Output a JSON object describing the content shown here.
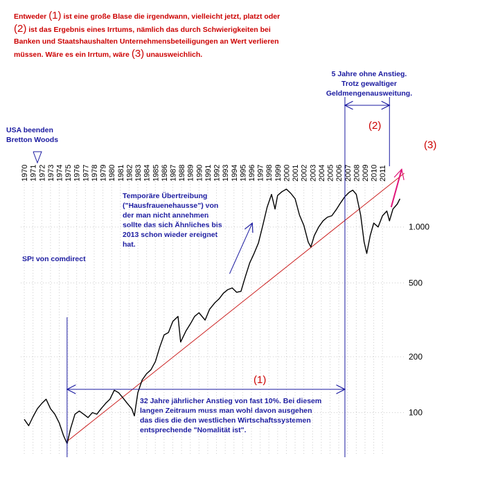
{
  "notes": {
    "top_line1_pre": "Entweder",
    "top_marker1": "(1)",
    "top_line1_post": "ist eine große Blase die irgendwann, vielleicht jetzt, platzt oder",
    "top_marker2": "(2)",
    "top_line2_post": "ist das Ergebnis eines Irrtums, nämlich das durch Schwierigkeiten bei",
    "top_line3": "Banken und Staatshaushalten Unternehmensbeteiligungen an Wert verlieren",
    "top_line4_pre": "müssen. Wäre es ein Irrtum, wäre",
    "top_marker3": "(3)",
    "top_line4_post": "unausweichlich.",
    "five_years_l1": "5 Jahre ohne Anstieg.",
    "five_years_l2": "Trotz gewaltiger",
    "five_years_l3": "Geldmengenausweitung.",
    "usa_l1": "USA beenden",
    "usa_l2": "Bretton Woods",
    "temp_l1": "Temporäre Übertreibung",
    "temp_l2": "(\"Hausfrauenehausse\") von",
    "temp_l3": "der man nicht annehmen",
    "temp_l4": "sollte das sich  Ähnliches bis",
    "temp_l5": "2013 schon wieder ereignet",
    "temp_l6": "hat.",
    "spi": "SPI von comdirect",
    "label_1": "(1)",
    "label_2": "(2)",
    "label_3": "(3)",
    "bottom_l1": "32 Jahre jährlicher Anstieg von fast 10%. Bei diesem",
    "bottom_l2": "langen Zeitraum muss man wohl davon ausgehen",
    "bottom_l3": "das dies die den westlichen Wirtschaftssystemen",
    "bottom_l4": "entsprechende \"Nomalität ist\"."
  },
  "colors": {
    "note_red": "#cc0000",
    "note_blue": "#1a1aa0",
    "trend_red": "#cc2222",
    "arrow_magenta": "#e0167a",
    "price_line": "#000000",
    "grid": "#cccccc"
  },
  "chart_data": {
    "type": "line",
    "title": "",
    "xlabel": "",
    "ylabel": "",
    "y_scale": "log",
    "ylim": [
      60,
      2200
    ],
    "xlim": [
      1969.6,
      2013.6
    ],
    "x_ticks": [
      "1970",
      "1971",
      "1972",
      "1973",
      "1974",
      "1975",
      "1976",
      "1977",
      "1978",
      "1979",
      "1980",
      "1981",
      "1982",
      "1983",
      "1984",
      "1985",
      "1986",
      "1987",
      "1988",
      "1989",
      "1990",
      "1991",
      "1992",
      "1993",
      "1994",
      "1995",
      "1996",
      "1997",
      "1998",
      "1999",
      "2000",
      "2001",
      "2002",
      "2003",
      "2004",
      "2005",
      "2006",
      "2007",
      "2008",
      "2009",
      "2010",
      "2011"
    ],
    "y_ticks": [
      {
        "value": 100,
        "label": "100"
      },
      {
        "value": 200,
        "label": "200"
      },
      {
        "value": 500,
        "label": "500"
      },
      {
        "value": 1000,
        "label": "1.000"
      }
    ],
    "grid": true,
    "series": [
      {
        "values_x": [
          1970.0,
          1970.5,
          1971.0,
          1971.5,
          1972.0,
          1972.5,
          1973.0,
          1973.5,
          1974.0,
          1974.5,
          1974.9,
          1975.3,
          1975.8,
          1976.3,
          1976.8,
          1977.3,
          1977.8,
          1978.3,
          1978.8,
          1979.3,
          1979.8,
          1980.3,
          1980.8,
          1981.3,
          1981.8,
          1982.3,
          1982.6,
          1983.0,
          1983.5,
          1984.0,
          1984.5,
          1985.0,
          1985.5,
          1986.0,
          1986.5,
          1987.0,
          1987.6,
          1987.9,
          1988.5,
          1989.0,
          1989.5,
          1990.0,
          1990.7,
          1991.2,
          1991.8,
          1992.3,
          1992.8,
          1993.3,
          1993.8,
          1994.3,
          1994.8,
          1995.3,
          1995.8,
          1996.3,
          1996.8,
          1997.3,
          1997.8,
          1998.3,
          1998.7,
          1999.0,
          1999.5,
          2000.0,
          2000.5,
          2001.0,
          2001.5,
          2002.0,
          2002.5,
          2002.8,
          2003.2,
          2003.7,
          2004.2,
          2004.7,
          2005.2,
          2005.7,
          2006.2,
          2006.7,
          2007.2,
          2007.6,
          2008.0,
          2008.5,
          2008.9,
          2009.2,
          2009.6,
          2010.0,
          2010.5,
          2011.0,
          2011.5,
          2011.8,
          2012.2,
          2012.7,
          2013.0
        ],
        "values_y": [
          92,
          85,
          95,
          105,
          112,
          118,
          105,
          98,
          88,
          75,
          68,
          82,
          98,
          102,
          98,
          94,
          100,
          98,
          105,
          112,
          118,
          132,
          128,
          120,
          112,
          105,
          96,
          128,
          150,
          162,
          170,
          188,
          225,
          262,
          270,
          310,
          330,
          240,
          275,
          300,
          330,
          345,
          315,
          360,
          390,
          410,
          440,
          460,
          470,
          445,
          450,
          540,
          640,
          720,
          820,
          1020,
          1280,
          1500,
          1250,
          1480,
          1550,
          1600,
          1520,
          1420,
          1160,
          1020,
          830,
          780,
          900,
          1000,
          1080,
          1130,
          1150,
          1240,
          1350,
          1460,
          1540,
          1580,
          1500,
          1160,
          830,
          720,
          900,
          1050,
          1000,
          1150,
          1220,
          1080,
          1250,
          1330,
          1420
        ]
      }
    ],
    "trendline": {
      "x": [
        1974.9,
        2013.5
      ],
      "y": [
        70,
        1950
      ]
    },
    "arrow3": {
      "from": [
        2012.0,
        1280
      ],
      "to": [
        2013.2,
        2050
      ]
    },
    "temp_arrow": {
      "from": [
        1993.5,
        560
      ],
      "to": [
        1996.1,
        1050
      ]
    },
    "range_1": {
      "from": 1974.9,
      "to": 2006.7
    },
    "range_2": {
      "from": 2006.7,
      "to": 2011.8
    }
  }
}
